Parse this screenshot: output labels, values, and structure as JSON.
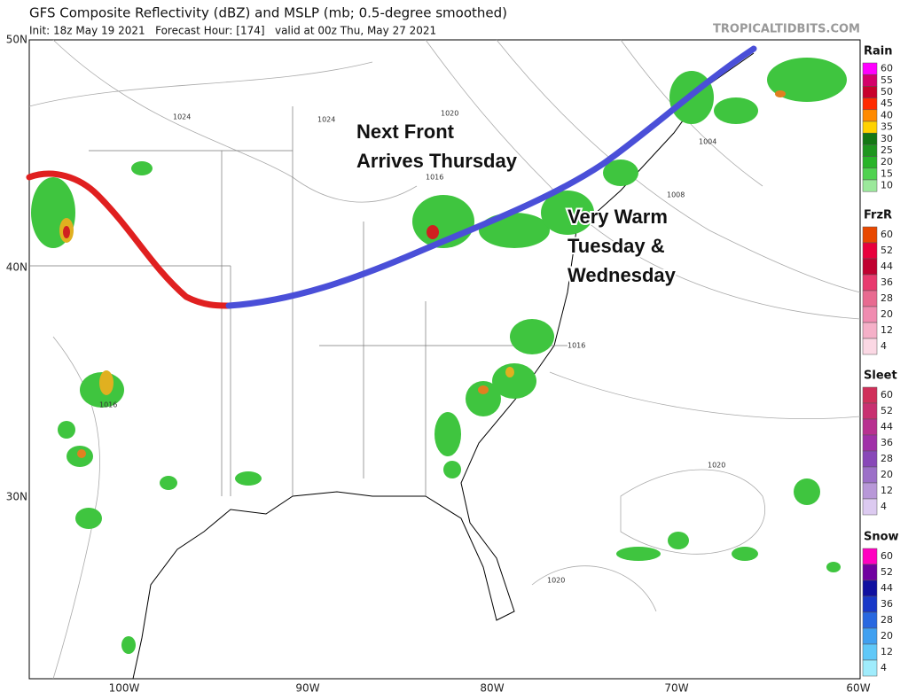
{
  "header": {
    "title": "GFS Composite Reflectivity (dBZ) and MSLP (mb; 0.5-degree smoothed)",
    "subtitle": "Init: 18z May 19 2021   Forecast Hour: [174]   valid at 00z Thu, May 27 2021",
    "credit": "TROPICALTIDBITS.COM"
  },
  "map": {
    "lat_labels": [
      "50N",
      "40N",
      "30N"
    ],
    "lon_labels": [
      "100W",
      "90W",
      "80W",
      "70W",
      "60W"
    ],
    "isobar_labels": [
      "1024",
      "1024",
      "1020",
      "1016",
      "1008",
      "1004",
      "1016",
      "1020",
      "1020",
      "1016"
    ],
    "annotations": [
      {
        "lines": [
          "Next Front",
          "Arrives Thursday"
        ]
      },
      {
        "lines": [
          "Very Warm",
          "Tuesday &",
          "Wednesday"
        ]
      }
    ]
  },
  "legend": [
    {
      "title": "Rain",
      "labels": [
        "60",
        "55",
        "50",
        "45",
        "40",
        "35",
        "30",
        "25",
        "20",
        "15",
        "10"
      ]
    },
    {
      "title": "FrzR",
      "labels": [
        "60",
        "52",
        "44",
        "36",
        "28",
        "20",
        "12",
        "4"
      ]
    },
    {
      "title": "Sleet",
      "labels": [
        "60",
        "52",
        "44",
        "36",
        "28",
        "20",
        "12",
        "4"
      ]
    },
    {
      "title": "Snow",
      "labels": [
        "60",
        "52",
        "44",
        "36",
        "28",
        "20",
        "12",
        "4"
      ]
    }
  ]
}
